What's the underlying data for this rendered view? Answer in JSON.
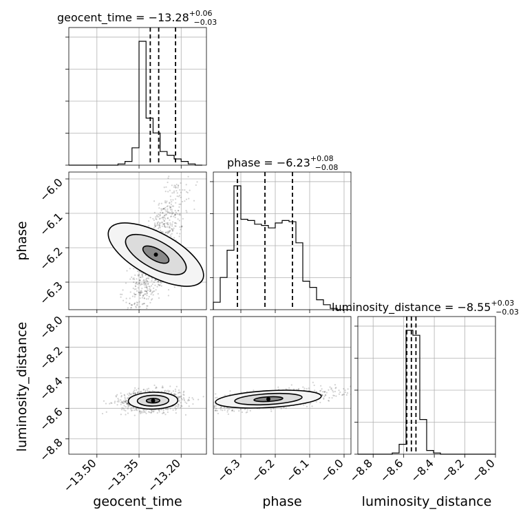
{
  "chart_data": {
    "type": "corner",
    "grid": true,
    "parameters": [
      {
        "name": "geocent_time",
        "range": [
          -13.6,
          -13.11
        ],
        "ticks": [
          -13.5,
          -13.35,
          -13.2
        ],
        "tick_labels": [
          "−13.50",
          "−13.35",
          "−13.20"
        ],
        "median": -13.28,
        "plus": 0.06,
        "minus": 0.03,
        "title_prefix": "geocent_time = −13.28",
        "title_sup": "+0.06",
        "title_sub": "−0.03",
        "quantile_lines": [
          -13.31,
          -13.28,
          -13.22
        ],
        "hist_bins": [
          -13.6,
          -13.575,
          -13.55,
          -13.525,
          -13.5,
          -13.475,
          -13.45,
          -13.425,
          -13.4,
          -13.375,
          -13.35,
          -13.325,
          -13.3,
          -13.275,
          -13.25,
          -13.225,
          -13.2,
          -13.175,
          -13.15,
          -13.125
        ],
        "hist_counts": [
          0,
          0,
          0,
          0,
          0,
          0,
          0,
          1,
          3,
          14,
          100,
          38,
          26,
          11,
          8,
          5,
          3,
          1,
          0
        ]
      },
      {
        "name": "phase",
        "range": [
          -6.38,
          -5.98
        ],
        "ticks": [
          -6.3,
          -6.2,
          -6.1,
          -6.0
        ],
        "tick_labels": [
          "−6.3",
          "−6.2",
          "−6.1",
          "−6.0"
        ],
        "median": -6.23,
        "plus": 0.08,
        "minus": 0.08,
        "title_prefix": "phase = −6.23",
        "title_sup": "+0.08",
        "title_sub": "−0.08",
        "quantile_lines": [
          -6.31,
          -6.23,
          -6.15
        ],
        "hist_bins": [
          -6.38,
          -6.36,
          -6.34,
          -6.32,
          -6.3,
          -6.28,
          -6.26,
          -6.24,
          -6.22,
          -6.2,
          -6.18,
          -6.16,
          -6.14,
          -6.12,
          -6.1,
          -6.08,
          -6.06,
          -6.04,
          -6.02,
          -6.0,
          -5.98
        ],
        "hist_counts": [
          6,
          26,
          48,
          100,
          73,
          72,
          69,
          68,
          66,
          70,
          72,
          71,
          54,
          23,
          18,
          8,
          4,
          1,
          0,
          0
        ]
      },
      {
        "name": "luminosity_distance",
        "range": [
          -8.9,
          -8.0
        ],
        "ticks": [
          -8.8,
          -8.6,
          -8.4,
          -8.2,
          -8.0
        ],
        "tick_labels": [
          "−8.8",
          "−8.6",
          "−8.4",
          "−8.2",
          "−8.0"
        ],
        "median": -8.55,
        "plus": 0.03,
        "minus": 0.03,
        "title_prefix": "luminosity_distance = −8.55",
        "title_sup": "+0.03",
        "title_sub": "−0.03",
        "quantile_lines": [
          -8.58,
          -8.55,
          -8.52
        ],
        "hist_bins": [
          -8.9,
          -8.855,
          -8.81,
          -8.765,
          -8.72,
          -8.675,
          -8.63,
          -8.585,
          -8.54,
          -8.495,
          -8.45,
          -8.405,
          -8.36,
          -8.315,
          -8.27,
          -8.225,
          -8.18,
          -8.135,
          -8.09,
          -8.045,
          -8.0
        ],
        "hist_counts": [
          0,
          0,
          0,
          0,
          0,
          1,
          8,
          100,
          96,
          28,
          3,
          1,
          0,
          0,
          0,
          0,
          0,
          0,
          0,
          0
        ]
      }
    ],
    "pairs": [
      {
        "x": "geocent_time",
        "y": "phase",
        "center": [
          -13.29,
          -6.22
        ],
        "spread": [
          0.035,
          0.07
        ],
        "corr": 0.75
      },
      {
        "x": "geocent_time",
        "y": "luminosity_distance",
        "center": [
          -13.3,
          -8.55
        ],
        "spread": [
          0.04,
          0.025
        ],
        "corr": 0.1
      },
      {
        "x": "phase",
        "y": "luminosity_distance",
        "center": [
          -6.22,
          -8.54
        ],
        "spread": [
          0.07,
          0.025
        ],
        "corr": 0.6
      }
    ]
  }
}
